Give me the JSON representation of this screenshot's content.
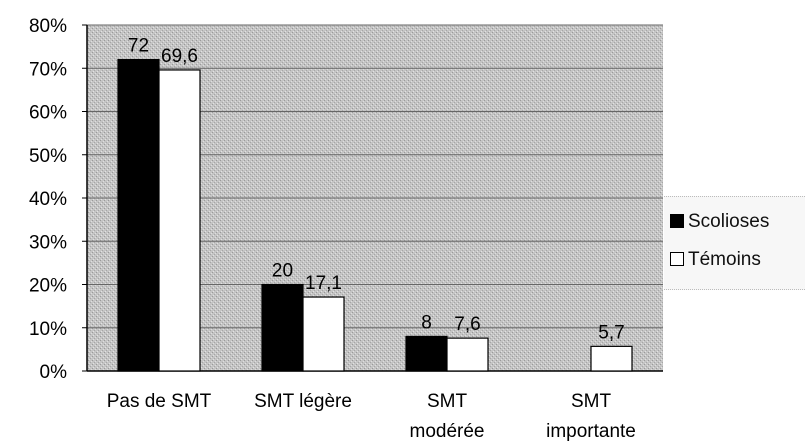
{
  "chart_data": {
    "type": "bar",
    "categories": [
      [
        "Pas de SMT"
      ],
      [
        "SMT légère"
      ],
      [
        "SMT",
        "modérée"
      ],
      [
        "SMT",
        "importante"
      ]
    ],
    "series": [
      {
        "name": "Scolioses",
        "values": [
          72,
          20,
          8,
          null
        ],
        "labels": [
          "72",
          "20",
          "8",
          ""
        ],
        "color": "#000000"
      },
      {
        "name": "Témoins",
        "values": [
          69.6,
          17.1,
          7.6,
          5.7
        ],
        "labels": [
          "69,6",
          "17,1",
          "7,6",
          "5,7"
        ],
        "color": "#ffffff"
      }
    ],
    "ylim": [
      0,
      80
    ],
    "yticks": [
      "0%",
      "10%",
      "20%",
      "30%",
      "40%",
      "50%",
      "60%",
      "70%",
      "80%"
    ],
    "grid": true,
    "legend_position": "right",
    "plot_background": "#bdbdbd"
  }
}
